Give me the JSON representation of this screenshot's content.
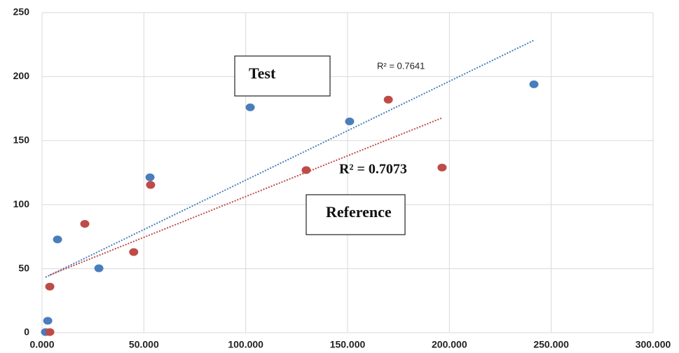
{
  "chart_data": {
    "type": "scatter",
    "xlim": [
      0,
      300
    ],
    "xticks": [
      {
        "value": 0,
        "label": "0.000"
      },
      {
        "value": 50,
        "label": "50.000"
      },
      {
        "value": 100,
        "label": "100.000"
      },
      {
        "value": 150,
        "label": "150.000"
      },
      {
        "value": 200,
        "label": "200.000"
      },
      {
        "value": 250,
        "label": "250.000"
      },
      {
        "value": 300,
        "label": "300.000"
      }
    ],
    "ylim": [
      0,
      250
    ],
    "yticks": [
      0,
      50,
      100,
      150,
      200,
      250
    ],
    "grid": true,
    "trendline": "linear",
    "series": [
      {
        "name": "Test",
        "color": "#4a7ebb",
        "x": [
          1.7,
          2.8,
          7.6,
          27.9,
          53,
          102.2,
          151,
          241.5
        ],
        "values": [
          0.5,
          9.3,
          72.8,
          50.3,
          121.4,
          176,
          165,
          194
        ]
      },
      {
        "name": "Reference",
        "color": "#be4b48",
        "x": [
          3.8,
          3.8,
          21,
          45,
          53.3,
          129.7,
          170,
          196.4
        ],
        "values": [
          0.5,
          36,
          85,
          63,
          115.4,
          127,
          182,
          129
        ]
      }
    ],
    "annotations": [
      "R² = 0.7641",
      "R² = 0.7073"
    ]
  }
}
